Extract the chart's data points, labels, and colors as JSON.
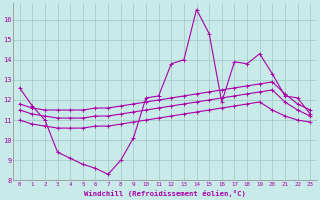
{
  "xlabel": "Windchill (Refroidissement éolien,°C)",
  "xlim_min": -0.5,
  "xlim_max": 23.5,
  "ylim_min": 8.0,
  "ylim_max": 16.8,
  "yticks": [
    8,
    9,
    10,
    11,
    12,
    13,
    14,
    15,
    16
  ],
  "xticks": [
    0,
    1,
    2,
    3,
    4,
    5,
    6,
    7,
    8,
    9,
    10,
    11,
    12,
    13,
    14,
    15,
    16,
    17,
    18,
    19,
    20,
    21,
    22,
    23
  ],
  "bg_color": "#c8eae8",
  "line_color": "#aa00aa",
  "grid_color": "#a0c8c4",
  "lines": [
    {
      "x": [
        0,
        1,
        2,
        3,
        4,
        5,
        6,
        7,
        8,
        9,
        10,
        11,
        12,
        13,
        14,
        15,
        16,
        17,
        18,
        19,
        20,
        21,
        22,
        23
      ],
      "y": [
        12.6,
        11.7,
        11.0,
        9.4,
        9.1,
        8.8,
        8.6,
        8.3,
        9.0,
        10.1,
        12.1,
        12.2,
        13.8,
        14.0,
        16.5,
        15.3,
        11.9,
        13.9,
        13.8,
        14.3,
        13.3,
        12.2,
        12.1,
        11.3
      ]
    },
    {
      "x": [
        0,
        1,
        2,
        3,
        4,
        5,
        6,
        7,
        8,
        9,
        10,
        11,
        12,
        13,
        14,
        15,
        16,
        17,
        18,
        19,
        20,
        21,
        22,
        23
      ],
      "y": [
        11.8,
        11.6,
        11.5,
        11.5,
        11.5,
        11.5,
        11.6,
        11.6,
        11.7,
        11.8,
        11.9,
        12.0,
        12.1,
        12.2,
        12.3,
        12.4,
        12.5,
        12.6,
        12.7,
        12.8,
        12.9,
        12.3,
        11.8,
        11.5
      ]
    },
    {
      "x": [
        0,
        1,
        2,
        3,
        4,
        5,
        6,
        7,
        8,
        9,
        10,
        11,
        12,
        13,
        14,
        15,
        16,
        17,
        18,
        19,
        20,
        21,
        22,
        23
      ],
      "y": [
        11.5,
        11.3,
        11.2,
        11.1,
        11.1,
        11.1,
        11.2,
        11.2,
        11.3,
        11.4,
        11.5,
        11.6,
        11.7,
        11.8,
        11.9,
        12.0,
        12.1,
        12.2,
        12.3,
        12.4,
        12.5,
        11.9,
        11.5,
        11.2
      ]
    },
    {
      "x": [
        0,
        1,
        2,
        3,
        4,
        5,
        6,
        7,
        8,
        9,
        10,
        11,
        12,
        13,
        14,
        15,
        16,
        17,
        18,
        19,
        20,
        21,
        22,
        23
      ],
      "y": [
        11.0,
        10.8,
        10.7,
        10.6,
        10.6,
        10.6,
        10.7,
        10.7,
        10.8,
        10.9,
        11.0,
        11.1,
        11.2,
        11.3,
        11.4,
        11.5,
        11.6,
        11.7,
        11.8,
        11.9,
        11.5,
        11.2,
        11.0,
        10.9
      ]
    }
  ]
}
